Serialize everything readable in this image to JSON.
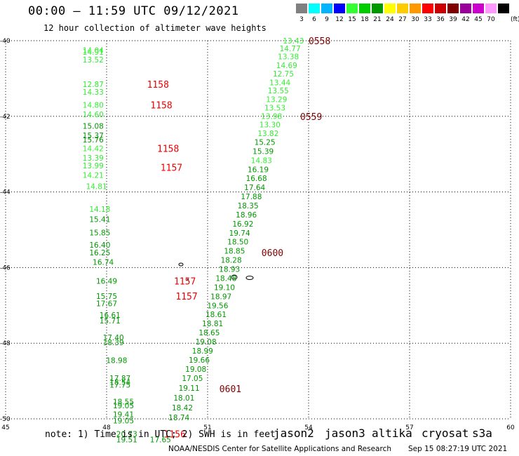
{
  "header": {
    "title": "00:00 – 11:59 UTC 09/12/2021",
    "subtitle": "12 hour collection of altimeter wave heights"
  },
  "color_scale": {
    "unit": "(ft)",
    "bins": [
      {
        "label": "3",
        "color": "#808080"
      },
      {
        "label": "6",
        "color": "#00ffff"
      },
      {
        "label": "9",
        "color": "#00b4ff"
      },
      {
        "label": "12",
        "color": "#0000ff"
      },
      {
        "label": "15",
        "color": "#33ff33"
      },
      {
        "label": "18",
        "color": "#00cc00"
      },
      {
        "label": "21",
        "color": "#009900"
      },
      {
        "label": "24",
        "color": "#ffff00"
      },
      {
        "label": "27",
        "color": "#ffcc00"
      },
      {
        "label": "30",
        "color": "#ff9900"
      },
      {
        "label": "33",
        "color": "#ff0000"
      },
      {
        "label": "36",
        "color": "#cc0000"
      },
      {
        "label": "39",
        "color": "#800000"
      },
      {
        "label": "42",
        "color": "#990099"
      },
      {
        "label": "45",
        "color": "#cc00cc"
      },
      {
        "label": "70",
        "color": "#ff99ff"
      },
      {
        "label": "",
        "color": "#000000"
      }
    ]
  },
  "map": {
    "lon_range": [
      45,
      60
    ],
    "lat_range": [
      -50,
      -40
    ],
    "lon_ticks": [
      "45",
      "48",
      "51",
      "54",
      "57",
      "60"
    ],
    "lat_ticks": [
      "-40",
      "-42",
      "-44",
      "-46",
      "-48",
      "-50"
    ],
    "grid": true
  },
  "tracks": {
    "west_track": [
      {
        "lat": -40.25,
        "lon": 47.6,
        "swh": "14.04",
        "c": "#33ee33"
      },
      {
        "lat": -40.3,
        "lon": 47.6,
        "swh": "14.91",
        "c": "#33ee33"
      },
      {
        "lat": -40.5,
        "lon": 47.6,
        "swh": "13.52",
        "c": "#33ee33"
      },
      {
        "lat": -41.15,
        "lon": 47.6,
        "swh": "12.87",
        "c": "#33ee33"
      },
      {
        "lat": -41.35,
        "lon": 47.6,
        "swh": "14.33",
        "c": "#33ee33"
      },
      {
        "lat": -41.7,
        "lon": 47.6,
        "swh": "14.80",
        "c": "#33ee33"
      },
      {
        "lat": -41.95,
        "lon": 47.6,
        "swh": "14.60",
        "c": "#33ee33"
      },
      {
        "lat": -42.25,
        "lon": 47.6,
        "swh": "15.08",
        "c": "#009900"
      },
      {
        "lat": -42.5,
        "lon": 47.6,
        "swh": "15.37",
        "c": "#009900"
      },
      {
        "lat": -42.62,
        "lon": 47.6,
        "swh": "15.76",
        "c": "#009900"
      },
      {
        "lat": -42.85,
        "lon": 47.6,
        "swh": "14.42",
        "c": "#33ee33"
      },
      {
        "lat": -43.1,
        "lon": 47.6,
        "swh": "13.39",
        "c": "#33ee33"
      },
      {
        "lat": -43.3,
        "lon": 47.6,
        "swh": "13.99",
        "c": "#33ee33"
      },
      {
        "lat": -43.55,
        "lon": 47.6,
        "swh": "14.21",
        "c": "#33ee33"
      },
      {
        "lat": -43.85,
        "lon": 47.7,
        "swh": "14.81",
        "c": "#33ee33"
      },
      {
        "lat": -44.45,
        "lon": 47.8,
        "swh": "14.18",
        "c": "#33ee33"
      },
      {
        "lat": -44.72,
        "lon": 47.8,
        "swh": "15.41",
        "c": "#009900"
      },
      {
        "lat": -45.07,
        "lon": 47.8,
        "swh": "15.85",
        "c": "#009900"
      },
      {
        "lat": -45.4,
        "lon": 47.8,
        "swh": "16.40",
        "c": "#009900"
      },
      {
        "lat": -45.6,
        "lon": 47.8,
        "swh": "16.25",
        "c": "#009900"
      },
      {
        "lat": -45.85,
        "lon": 47.9,
        "swh": "16.74",
        "c": "#009900"
      },
      {
        "lat": -46.35,
        "lon": 48.0,
        "swh": "16.49",
        "c": "#009900"
      },
      {
        "lat": -46.75,
        "lon": 48.0,
        "swh": "15.75",
        "c": "#009900"
      },
      {
        "lat": -46.95,
        "lon": 48.0,
        "swh": "17.67",
        "c": "#009900"
      },
      {
        "lat": -47.25,
        "lon": 48.1,
        "swh": "16.61",
        "c": "#009900"
      },
      {
        "lat": -47.4,
        "lon": 48.1,
        "swh": "15.71",
        "c": "#009900"
      },
      {
        "lat": -47.85,
        "lon": 48.2,
        "swh": "17.40",
        "c": "#009900"
      },
      {
        "lat": -47.98,
        "lon": 48.2,
        "swh": "18.39",
        "c": "#009900"
      },
      {
        "lat": -48.45,
        "lon": 48.3,
        "swh": "18.98",
        "c": "#009900"
      },
      {
        "lat": -48.92,
        "lon": 48.4,
        "swh": "17.87",
        "c": "#009900"
      },
      {
        "lat": -49.03,
        "lon": 48.4,
        "swh": "18.54",
        "c": "#009900"
      },
      {
        "lat": -49.1,
        "lon": 48.4,
        "swh": "17.75",
        "c": "#009900"
      },
      {
        "lat": -49.55,
        "lon": 48.5,
        "swh": "18.55",
        "c": "#009900"
      },
      {
        "lat": -49.65,
        "lon": 48.5,
        "swh": "19.05",
        "c": "#009900"
      },
      {
        "lat": -49.88,
        "lon": 48.5,
        "swh": "19.41",
        "c": "#009900"
      },
      {
        "lat": -50.05,
        "lon": 48.5,
        "swh": "19.05",
        "c": "#009900"
      },
      {
        "lat": -50.4,
        "lon": 48.6,
        "swh": "20.73",
        "c": "#009900"
      },
      {
        "lat": -50.55,
        "lon": 48.6,
        "swh": "19.51",
        "c": "#009900"
      },
      {
        "lat": -50.55,
        "lon": 49.6,
        "swh": "17.65",
        "c": "#009900"
      }
    ],
    "east_track": [
      {
        "lat": -40.0,
        "lon": 53.55,
        "swh": "13.43",
        "c": "#33ee33"
      },
      {
        "lat": -40.2,
        "lon": 53.45,
        "swh": "14.77",
        "c": "#33ee33"
      },
      {
        "lat": -40.42,
        "lon": 53.4,
        "swh": "13.38",
        "c": "#33ee33"
      },
      {
        "lat": -40.65,
        "lon": 53.35,
        "swh": "14.69",
        "c": "#33ee33"
      },
      {
        "lat": -40.87,
        "lon": 53.25,
        "swh": "12.75",
        "c": "#33ee33"
      },
      {
        "lat": -41.1,
        "lon": 53.15,
        "swh": "13.44",
        "c": "#33ee33"
      },
      {
        "lat": -41.32,
        "lon": 53.1,
        "swh": "13.55",
        "c": "#33ee33"
      },
      {
        "lat": -41.55,
        "lon": 53.05,
        "swh": "13.29",
        "c": "#33ee33"
      },
      {
        "lat": -41.77,
        "lon": 53.0,
        "swh": "13.53",
        "c": "#33ee33"
      },
      {
        "lat": -41.99,
        "lon": 52.9,
        "swh": "13.98",
        "c": "#33ee33"
      },
      {
        "lat": -42.22,
        "lon": 52.85,
        "swh": "13.30",
        "c": "#33ee33"
      },
      {
        "lat": -42.45,
        "lon": 52.8,
        "swh": "13.82",
        "c": "#33ee33"
      },
      {
        "lat": -42.68,
        "lon": 52.7,
        "swh": "15.25",
        "c": "#009900"
      },
      {
        "lat": -42.92,
        "lon": 52.65,
        "swh": "15.39",
        "c": "#009900"
      },
      {
        "lat": -43.16,
        "lon": 52.6,
        "swh": "14.83",
        "c": "#33ee33"
      },
      {
        "lat": -43.4,
        "lon": 52.5,
        "swh": "16.19",
        "c": "#009900"
      },
      {
        "lat": -43.64,
        "lon": 52.45,
        "swh": "16.68",
        "c": "#009900"
      },
      {
        "lat": -43.88,
        "lon": 52.4,
        "swh": "17.64",
        "c": "#009900"
      },
      {
        "lat": -44.12,
        "lon": 52.3,
        "swh": "17.88",
        "c": "#009900"
      },
      {
        "lat": -44.36,
        "lon": 52.2,
        "swh": "18.35",
        "c": "#009900"
      },
      {
        "lat": -44.6,
        "lon": 52.15,
        "swh": "18.96",
        "c": "#009900"
      },
      {
        "lat": -44.84,
        "lon": 52.05,
        "swh": "16.92",
        "c": "#009900"
      },
      {
        "lat": -45.08,
        "lon": 51.95,
        "swh": "19.74",
        "c": "#009900"
      },
      {
        "lat": -45.32,
        "lon": 51.9,
        "swh": "18.50",
        "c": "#009900"
      },
      {
        "lat": -45.56,
        "lon": 51.8,
        "swh": "18.85",
        "c": "#009900"
      },
      {
        "lat": -45.8,
        "lon": 51.7,
        "swh": "18.28",
        "c": "#009900"
      },
      {
        "lat": -46.04,
        "lon": 51.65,
        "swh": "18.93",
        "c": "#009900"
      },
      {
        "lat": -46.28,
        "lon": 51.55,
        "swh": "18.48",
        "c": "#009900"
      },
      {
        "lat": -46.52,
        "lon": 51.5,
        "swh": "19.10",
        "c": "#009900"
      },
      {
        "lat": -46.76,
        "lon": 51.4,
        "swh": "18.97",
        "c": "#009900"
      },
      {
        "lat": -47.0,
        "lon": 51.3,
        "swh": "19.56",
        "c": "#009900"
      },
      {
        "lat": -47.24,
        "lon": 51.25,
        "swh": "18.61",
        "c": "#009900"
      },
      {
        "lat": -47.48,
        "lon": 51.15,
        "swh": "18.81",
        "c": "#009900"
      },
      {
        "lat": -47.72,
        "lon": 51.05,
        "swh": "18.65",
        "c": "#009900"
      },
      {
        "lat": -47.96,
        "lon": 50.95,
        "swh": "19.08",
        "c": "#009900"
      },
      {
        "lat": -48.2,
        "lon": 50.85,
        "swh": "18.99",
        "c": "#009900"
      },
      {
        "lat": -48.44,
        "lon": 50.75,
        "swh": "19.66",
        "c": "#009900"
      },
      {
        "lat": -48.68,
        "lon": 50.65,
        "swh": "19.08",
        "c": "#009900"
      },
      {
        "lat": -48.92,
        "lon": 50.55,
        "swh": "17.05",
        "c": "#009900"
      },
      {
        "lat": -49.18,
        "lon": 50.45,
        "swh": "19.11",
        "c": "#009900"
      },
      {
        "lat": -49.44,
        "lon": 50.3,
        "swh": "18.01",
        "c": "#009900"
      },
      {
        "lat": -49.7,
        "lon": 50.25,
        "swh": "18.42",
        "c": "#009900"
      },
      {
        "lat": -49.96,
        "lon": 50.15,
        "swh": "18.74",
        "c": "#009900"
      }
    ]
  },
  "time_labels": [
    {
      "text": "0558",
      "lat": -40.0,
      "lon": 54.0,
      "c": "#800000"
    },
    {
      "text": "0559",
      "lat": -42.0,
      "lon": 53.75,
      "c": "#800000"
    },
    {
      "text": "0600",
      "lat": -45.6,
      "lon": 52.6,
      "c": "#800000"
    },
    {
      "text": "0601",
      "lat": -49.2,
      "lon": 51.35,
      "c": "#800000"
    },
    {
      "text": "1158",
      "lat": -41.15,
      "lon": 49.2,
      "c": "#ee0000"
    },
    {
      "text": "1158",
      "lat": -41.7,
      "lon": 49.3,
      "c": "#ee0000"
    },
    {
      "text": "1158",
      "lat": -42.85,
      "lon": 49.5,
      "c": "#ee0000"
    },
    {
      "text": "1157",
      "lat": -43.35,
      "lon": 49.6,
      "c": "#ee0000"
    },
    {
      "text": "1157",
      "lat": -46.35,
      "lon": 50.0,
      "c": "#ee0000"
    },
    {
      "text": "1157",
      "lat": -46.75,
      "lon": 50.05,
      "c": "#ee0000"
    },
    {
      "text": "1156",
      "lat": -50.4,
      "lon": 49.7,
      "c": "#ee0000"
    }
  ],
  "footer": {
    "note": "note: 1) Time is in UTC; 2) SWH is in feet",
    "satellites": [
      {
        "name": "jason2",
        "color": "#0000ff"
      },
      {
        "name": "jason3",
        "color": "#009900"
      },
      {
        "name": "altika",
        "color": "#ff9900"
      },
      {
        "name": "cryosat",
        "color": "#ff0000"
      },
      {
        "name": "s3a",
        "color": "#800000"
      }
    ],
    "credit": "NOAA/NESDIS Center for Satellite Applications and Research",
    "generated": "Sep 15 08:27:19 UTC 2021"
  }
}
